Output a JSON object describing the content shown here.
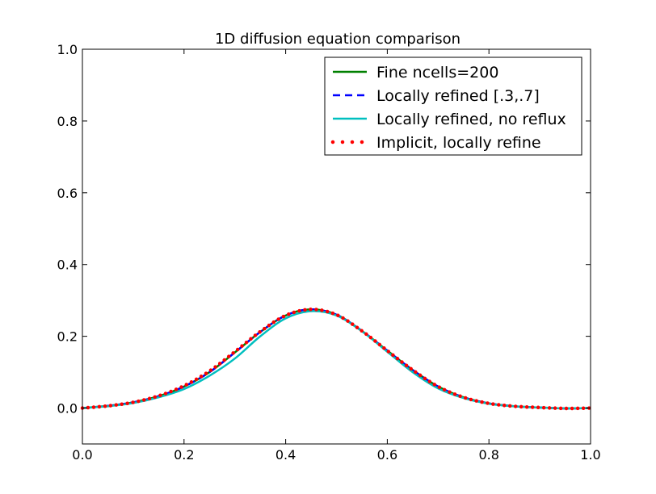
{
  "chart_data": {
    "type": "line",
    "title": "1D diffusion equation comparison",
    "xlabel": "",
    "ylabel": "",
    "xlim": [
      0.0,
      1.0
    ],
    "ylim": [
      -0.1,
      1.0
    ],
    "xticks": [
      0.0,
      0.2,
      0.4,
      0.6,
      0.8,
      1.0
    ],
    "xtick_labels": [
      "0.0",
      "0.2",
      "0.4",
      "0.6",
      "0.8",
      "1.0"
    ],
    "yticks": [
      0.0,
      0.2,
      0.4,
      0.6,
      0.8,
      1.0
    ],
    "ytick_labels": [
      "0.0",
      "0.2",
      "0.4",
      "0.6",
      "0.8",
      "1.0"
    ],
    "grid": false,
    "legend_position": "top-right",
    "series": [
      {
        "name": "Fine ncells=200",
        "style": "solid",
        "color": "#008000",
        "x": [
          0.0,
          0.05,
          0.1,
          0.15,
          0.2,
          0.25,
          0.3,
          0.35,
          0.4,
          0.45,
          0.5,
          0.55,
          0.6,
          0.65,
          0.7,
          0.75,
          0.8,
          0.85,
          0.9,
          0.95,
          1.0
        ],
        "y": [
          0.0,
          0.006,
          0.016,
          0.033,
          0.06,
          0.1,
          0.155,
          0.212,
          0.258,
          0.275,
          0.26,
          0.215,
          0.16,
          0.106,
          0.06,
          0.03,
          0.013,
          0.005,
          0.0015,
          -0.001,
          0.0
        ]
      },
      {
        "name": "Locally refined [.3,.7]",
        "style": "dashed",
        "color": "#0000ff",
        "x": [
          0.0,
          0.05,
          0.1,
          0.15,
          0.2,
          0.25,
          0.3,
          0.35,
          0.4,
          0.45,
          0.5,
          0.55,
          0.6,
          0.65,
          0.7,
          0.75,
          0.8,
          0.85,
          0.9,
          0.95,
          1.0
        ],
        "y": [
          0.0,
          0.006,
          0.016,
          0.033,
          0.06,
          0.1,
          0.155,
          0.212,
          0.258,
          0.275,
          0.26,
          0.215,
          0.16,
          0.106,
          0.06,
          0.03,
          0.013,
          0.005,
          0.0015,
          -0.001,
          0.0
        ]
      },
      {
        "name": "Locally refined, no reflux",
        "style": "solid",
        "color": "#00bfbf",
        "x": [
          0.0,
          0.05,
          0.1,
          0.15,
          0.2,
          0.25,
          0.3,
          0.35,
          0.4,
          0.45,
          0.5,
          0.55,
          0.6,
          0.65,
          0.7,
          0.75,
          0.8,
          0.85,
          0.9,
          0.95,
          1.0
        ],
        "y": [
          0.0,
          0.005,
          0.014,
          0.03,
          0.053,
          0.09,
          0.138,
          0.2,
          0.25,
          0.27,
          0.258,
          0.214,
          0.157,
          0.1,
          0.055,
          0.028,
          0.012,
          0.005,
          0.0015,
          -0.001,
          0.0
        ]
      },
      {
        "name": "Implicit, locally refine",
        "style": "dotted",
        "color": "#ff0000",
        "x": [
          0.0,
          0.05,
          0.1,
          0.15,
          0.2,
          0.25,
          0.3,
          0.35,
          0.4,
          0.45,
          0.5,
          0.55,
          0.6,
          0.65,
          0.7,
          0.75,
          0.8,
          0.85,
          0.9,
          0.95,
          1.0
        ],
        "y": [
          0.0,
          0.006,
          0.016,
          0.034,
          0.062,
          0.103,
          0.157,
          0.213,
          0.258,
          0.275,
          0.26,
          0.215,
          0.16,
          0.106,
          0.06,
          0.03,
          0.013,
          0.005,
          0.0015,
          -0.001,
          0.0
        ]
      }
    ]
  }
}
